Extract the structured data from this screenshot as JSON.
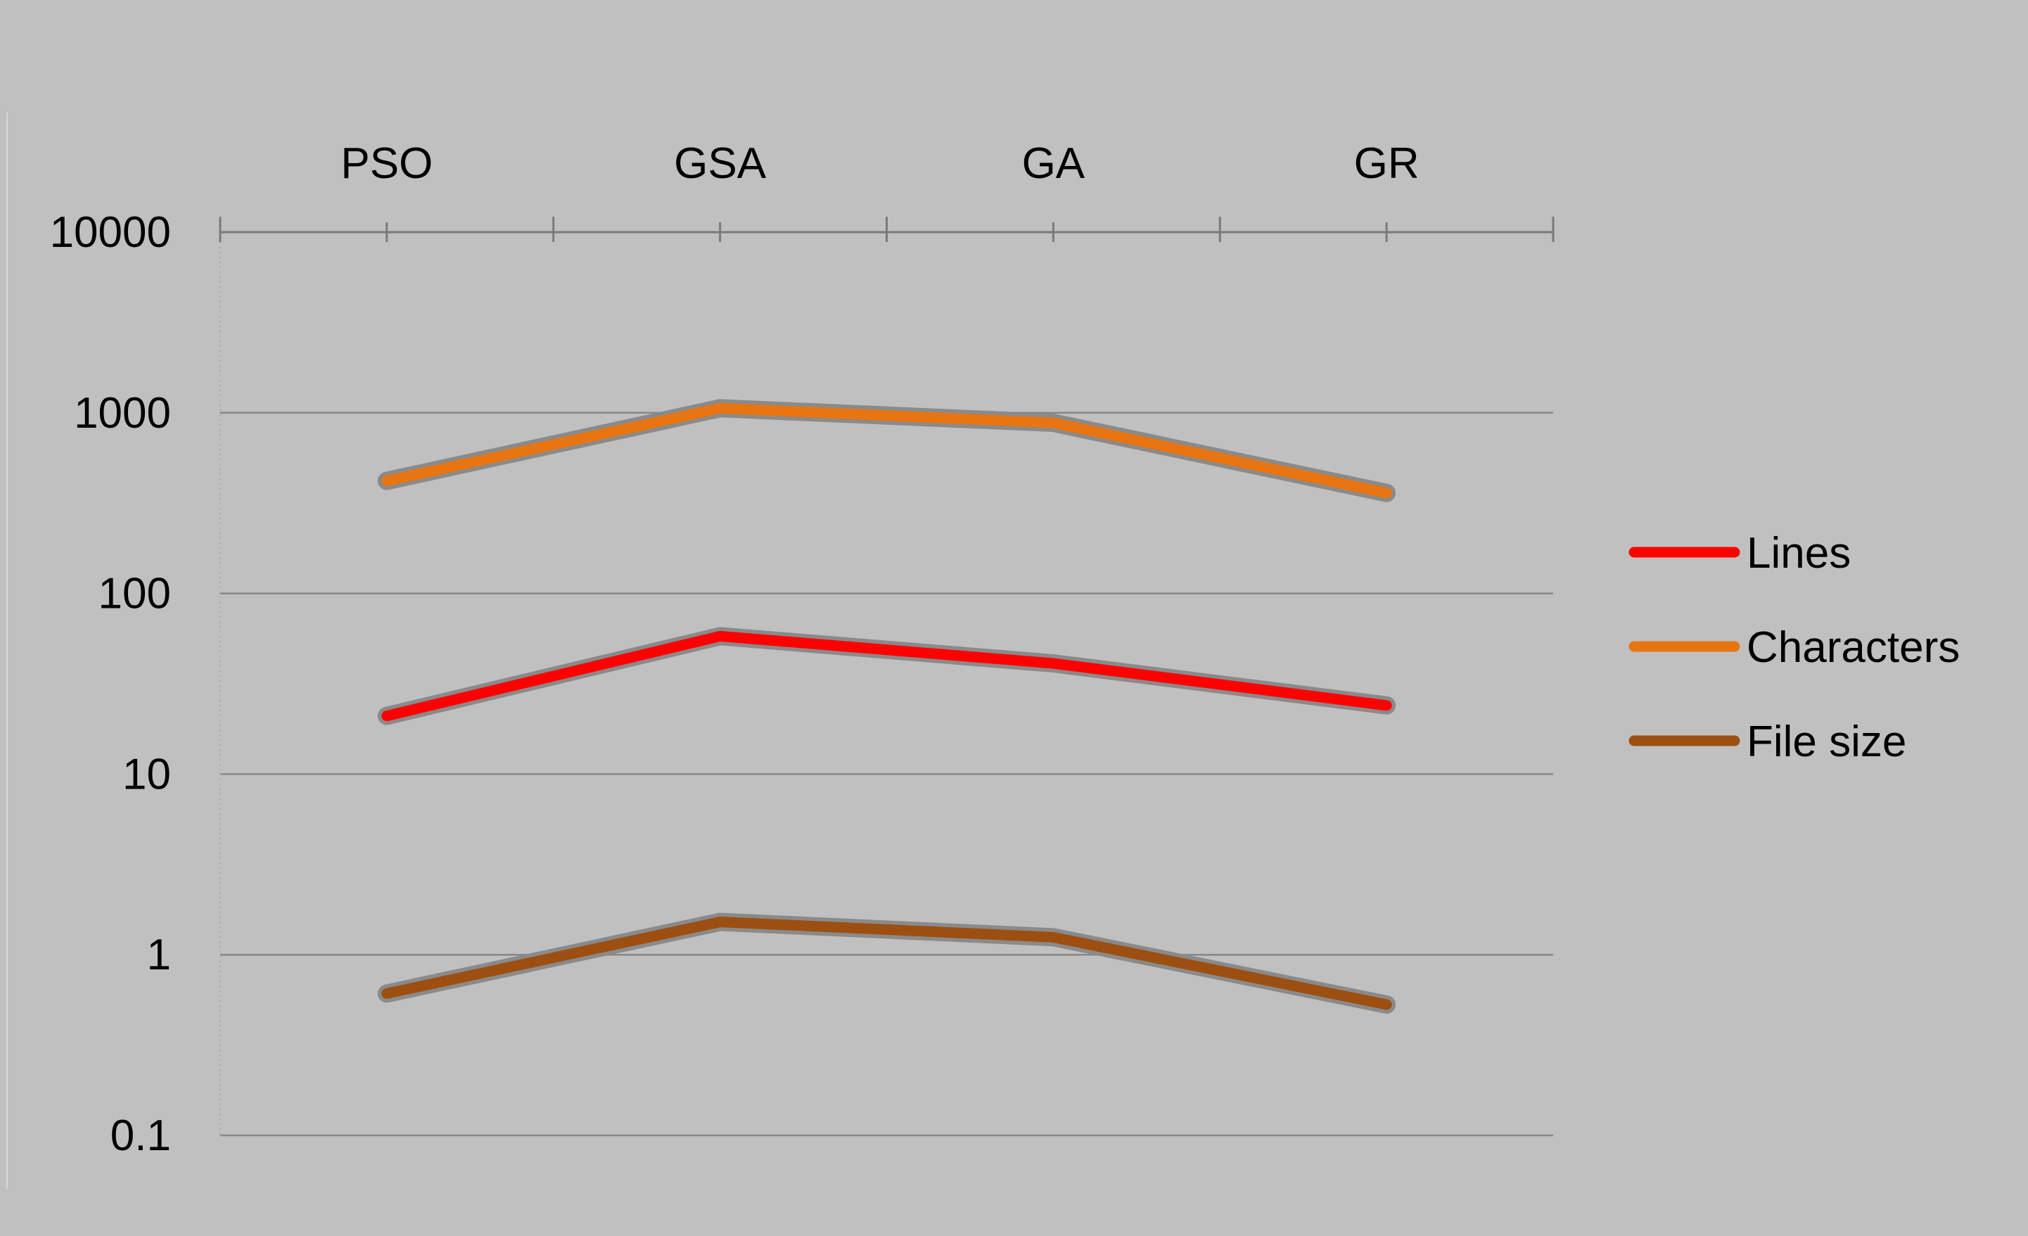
{
  "chart_data": {
    "type": "line",
    "categories": [
      "PSO",
      "GSA",
      "GA",
      "GR"
    ],
    "y_scale": "log",
    "ylim": [
      0.1,
      10000
    ],
    "y_ticks": [
      "10000",
      "1000",
      "100",
      "10",
      "1",
      "0.1"
    ],
    "y_tick_values": [
      10000,
      1000,
      100,
      10,
      1,
      0.1
    ],
    "x_axis_position": "top",
    "grid": true,
    "legend_position": "right",
    "series": [
      {
        "name": "Lines",
        "values": [
          21,
          58,
          41,
          24
        ],
        "color": "#ff0000"
      },
      {
        "name": "Characters",
        "values": [
          420,
          1060,
          880,
          360
        ],
        "color": "#e87511"
      },
      {
        "name": "File size",
        "values": [
          0.61,
          1.52,
          1.25,
          0.53
        ],
        "color": "#9c4f10"
      }
    ]
  }
}
